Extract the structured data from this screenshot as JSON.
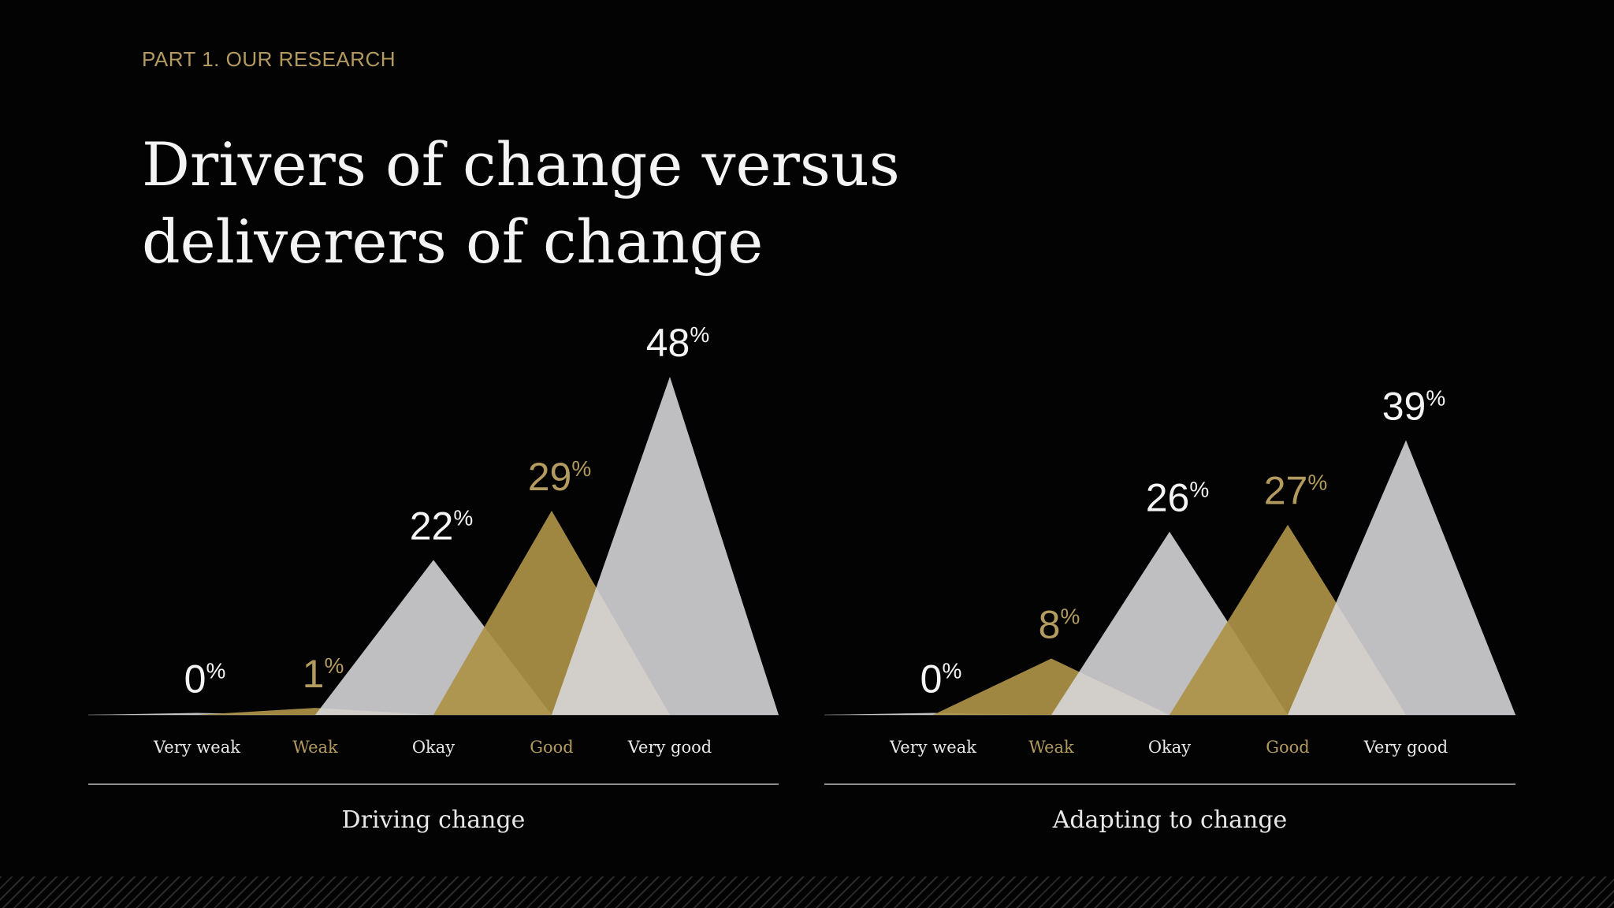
{
  "header": {
    "eyebrow": "PART 1. OUR RESEARCH",
    "title": "Drivers of change versus deliverers of change"
  },
  "colors": {
    "background": "#030303",
    "gray_peak": "#d9d9dd",
    "gold_peak": "#ad9248",
    "gold_text": "#b39a5e",
    "text": "#f4f4f4"
  },
  "chart_data": [
    {
      "type": "area",
      "title": "Driving change",
      "categories": [
        "Very weak",
        "Weak",
        "Okay",
        "Good",
        "Very good"
      ],
      "values": [
        0,
        1,
        22,
        29,
        48
      ],
      "unit": "%",
      "ylim": [
        0,
        48
      ]
    },
    {
      "type": "area",
      "title": "Adapting to change",
      "categories": [
        "Very weak",
        "Weak",
        "Okay",
        "Good",
        "Very good"
      ],
      "values": [
        0,
        8,
        26,
        27,
        39
      ],
      "unit": "%",
      "ylim": [
        0,
        48
      ]
    }
  ]
}
